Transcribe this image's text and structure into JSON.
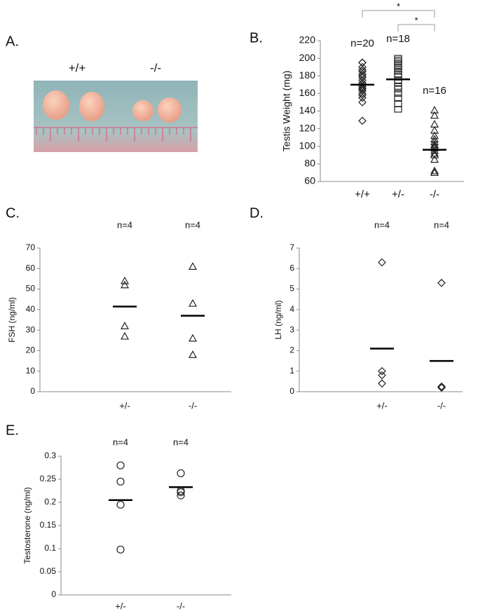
{
  "panel_a": {
    "label": "A.",
    "captions": [
      "+/+",
      "-/-"
    ]
  },
  "chart_data": [
    {
      "type": "strip",
      "label": "B.",
      "ylabel": "Testis Weight (mg)",
      "categories": [
        "+/+",
        "+/-",
        "-/-"
      ],
      "n_labels": [
        "n=20",
        "n=18",
        "n=16"
      ],
      "groups": [
        {
          "marker": "diamond",
          "values": [
            195,
            195,
            190,
            187,
            185,
            182,
            180,
            178,
            175,
            172,
            170,
            168,
            166,
            165,
            163,
            160,
            158,
            155,
            150,
            129
          ],
          "mean": 170
        },
        {
          "marker": "square",
          "values": [
            200,
            198,
            196,
            194,
            192,
            190,
            188,
            185,
            182,
            180,
            175,
            172,
            168,
            165,
            160,
            155,
            148,
            142
          ],
          "mean": 176
        },
        {
          "marker": "triangle",
          "values": [
            141,
            135,
            125,
            118,
            112,
            108,
            105,
            102,
            100,
            98,
            95,
            92,
            90,
            85,
            72,
            70
          ],
          "mean": 96
        }
      ],
      "ylim": [
        60,
        220
      ],
      "yticks": [
        60,
        80,
        100,
        120,
        140,
        160,
        180,
        200,
        220
      ],
      "significance": [
        {
          "from": 0,
          "to": 2,
          "label": "*"
        },
        {
          "from": 1,
          "to": 2,
          "label": "*"
        }
      ]
    },
    {
      "type": "strip",
      "label": "C.",
      "ylabel": "FSH (ng/ml)",
      "categories": [
        "+/-",
        "-/-"
      ],
      "n_labels": [
        "n=4",
        "n=4"
      ],
      "groups": [
        {
          "marker": "triangle",
          "values": [
            54,
            52,
            32,
            27
          ],
          "mean": 41.5
        },
        {
          "marker": "triangle",
          "values": [
            61,
            43,
            26,
            18
          ],
          "mean": 37
        }
      ],
      "ylim": [
        0,
        70
      ],
      "yticks": [
        0,
        10,
        20,
        30,
        40,
        50,
        60,
        70
      ]
    },
    {
      "type": "strip",
      "label": "D.",
      "ylabel": "LH (ng/ml)",
      "categories": [
        "+/-",
        "-/-"
      ],
      "n_labels": [
        "n=4",
        "n=4"
      ],
      "groups": [
        {
          "marker": "diamond",
          "values": [
            6.3,
            1.0,
            0.8,
            0.4
          ],
          "mean": 2.1
        },
        {
          "marker": "diamond",
          "values": [
            5.3,
            0.25,
            0.2,
            0.2
          ],
          "mean": 1.5
        }
      ],
      "ylim": [
        0,
        7
      ],
      "yticks": [
        0,
        1,
        2,
        3,
        4,
        5,
        6,
        7
      ]
    },
    {
      "type": "strip",
      "label": "E.",
      "ylabel": "Testosterone (ng/ml)",
      "categories": [
        "+/-",
        "-/-"
      ],
      "n_labels": [
        "n=4",
        "n=4"
      ],
      "groups": [
        {
          "marker": "circle",
          "values": [
            0.28,
            0.245,
            0.195,
            0.098
          ],
          "mean": 0.205
        },
        {
          "marker": "circle",
          "values": [
            0.263,
            0.225,
            0.222,
            0.215
          ],
          "mean": 0.233
        }
      ],
      "ylim": [
        0,
        0.3
      ],
      "yticks": [
        0,
        0.05,
        0.1,
        0.15,
        0.2,
        0.25,
        0.3
      ]
    }
  ]
}
